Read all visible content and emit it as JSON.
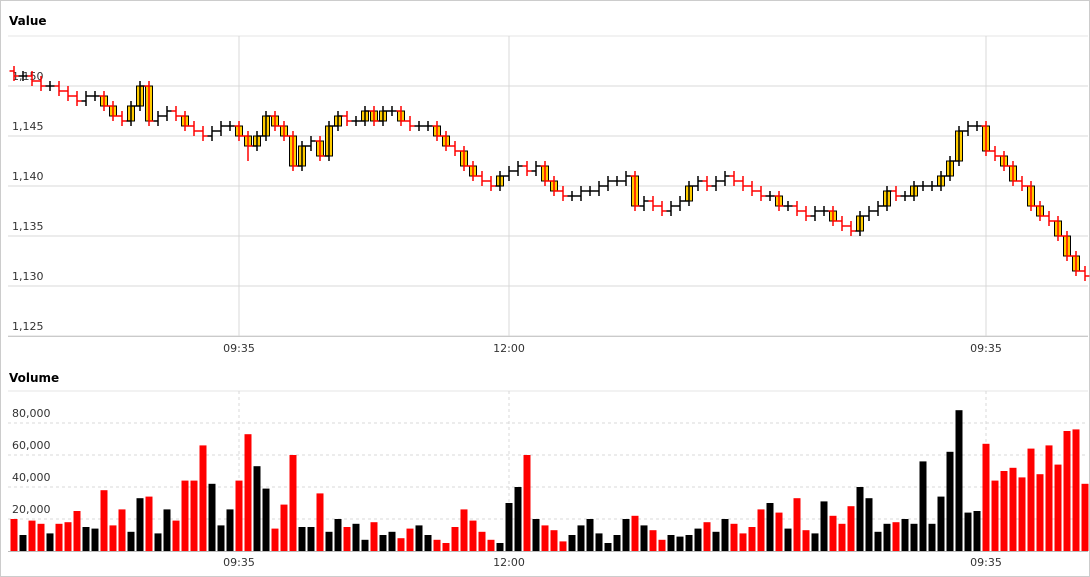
{
  "chart_data": [
    {
      "type": "candlestick",
      "title": "Value",
      "categories": [
        null,
        null,
        null,
        null,
        null,
        null,
        null,
        null,
        null,
        null,
        null,
        null,
        null,
        null,
        null,
        null,
        null,
        null,
        null,
        null,
        null,
        null,
        null,
        null,
        null,
        "09:35",
        null,
        null,
        null,
        null,
        null,
        null,
        null,
        null,
        null,
        null,
        null,
        null,
        null,
        null,
        null,
        null,
        null,
        null,
        null,
        null,
        null,
        null,
        null,
        null,
        null,
        null,
        null,
        null,
        null,
        "12:00",
        null,
        null,
        null,
        null,
        null,
        null,
        null,
        null,
        null,
        null,
        null,
        null,
        null,
        null,
        null,
        null,
        null,
        null,
        null,
        null,
        null,
        null,
        null,
        null,
        null,
        null,
        null,
        null,
        null,
        null,
        null,
        null,
        null,
        null,
        null,
        null,
        null,
        null,
        null,
        null,
        null,
        null,
        null,
        null,
        null,
        null,
        null,
        null,
        null,
        null,
        null,
        null,
        "09:35",
        null,
        null,
        null,
        null,
        null,
        null,
        null,
        null,
        null,
        null,
        null
      ],
      "open": [
        1151.5,
        1151,
        1151,
        1150.5,
        1150,
        1150,
        1149.5,
        1149,
        1148.5,
        1149,
        1149,
        1148,
        1147,
        1146.5,
        1148,
        1150,
        1146.5,
        1147,
        1147.5,
        1147,
        1146,
        1145.5,
        1145,
        1145.5,
        1146,
        1146,
        1145,
        1144,
        1145,
        1147,
        1146,
        1145,
        1142,
        1144,
        1144.5,
        1143,
        1146,
        1147,
        1146.5,
        1146.5,
        1147.5,
        1146.5,
        1147.5,
        1147.5,
        1146.5,
        1146,
        1146,
        1146,
        1145,
        1144,
        1143.5,
        1142,
        1141,
        1140.5,
        1140,
        1141,
        1141.5,
        1142,
        1141.5,
        1142,
        1140.5,
        1139.5,
        1139,
        1139,
        1139.5,
        1139.5,
        1140,
        1140.5,
        1140.5,
        1141,
        1138,
        1138.5,
        1138,
        1137.5,
        1138,
        1138.5,
        1140,
        1140.5,
        1140,
        1140.5,
        1141,
        1140.5,
        1140,
        1139.5,
        1139,
        1139,
        1138,
        1138,
        1137.5,
        1137,
        1137.5,
        1137.5,
        1136.5,
        1136,
        1135.5,
        1137,
        1137.5,
        1138,
        1139.5,
        1139,
        1139,
        1140,
        1140,
        1140,
        1141,
        1142.5,
        1145.5,
        1146,
        1146,
        1143.5,
        1143,
        1142,
        1140.5,
        1140,
        1138,
        1137,
        1136.5,
        1135,
        1133,
        1131.5
      ],
      "high": [
        1152,
        1151.5,
        1151.5,
        1151,
        1150.5,
        1150.5,
        1150,
        1149.5,
        1149.5,
        1149.5,
        1149.5,
        1148.5,
        1147.5,
        1148.5,
        1150.5,
        1150.5,
        1147.5,
        1148,
        1148,
        1147.5,
        1146.5,
        1146,
        1146,
        1146.5,
        1146.5,
        1146.5,
        1145.5,
        1145.5,
        1147.5,
        1147.5,
        1146.5,
        1145.5,
        1144.5,
        1145,
        1145,
        1146.5,
        1147.5,
        1147.5,
        1147,
        1148,
        1148,
        1148,
        1148,
        1148,
        1147,
        1146.5,
        1146.5,
        1146.5,
        1145.5,
        1144.5,
        1144,
        1142.5,
        1141.5,
        1141,
        1141.5,
        1142,
        1142.5,
        1142.5,
        1142.5,
        1142.5,
        1141,
        1140,
        1139.5,
        1140,
        1140,
        1140.5,
        1141,
        1141,
        1141.5,
        1141.5,
        1139,
        1139,
        1138.5,
        1138.5,
        1139,
        1140.5,
        1141,
        1141,
        1141,
        1141.5,
        1141.5,
        1141,
        1140.5,
        1140,
        1139.5,
        1139.5,
        1138.5,
        1138.5,
        1138,
        1138,
        1138,
        1138,
        1137,
        1136.5,
        1137.5,
        1138,
        1138.5,
        1140,
        1140,
        1139.5,
        1140.5,
        1140.5,
        1140.5,
        1141.5,
        1143,
        1146,
        1146.5,
        1146.5,
        1146.5,
        1144,
        1143.5,
        1142.5,
        1141,
        1140.5,
        1138.5,
        1137.5,
        1137,
        1135.5,
        1133.5,
        1132
      ],
      "low": [
        1150.5,
        1150.5,
        1150,
        1149.5,
        1149.5,
        1149,
        1148.5,
        1148,
        1148,
        1148.5,
        1147.5,
        1146.5,
        1146,
        1146,
        1147.5,
        1146,
        1146,
        1146.5,
        1146.5,
        1145.5,
        1145,
        1144.5,
        1144.5,
        1145,
        1145.5,
        1144.5,
        1142.5,
        1143.5,
        1144.5,
        1145.5,
        1144.5,
        1141.5,
        1141.5,
        1143.5,
        1142.5,
        1142.5,
        1145.5,
        1146,
        1146,
        1146,
        1146,
        1146,
        1147,
        1146,
        1145.5,
        1145.5,
        1145.5,
        1144.5,
        1143.5,
        1143,
        1141.5,
        1140.5,
        1140,
        1139.5,
        1139.5,
        1140.5,
        1141,
        1141,
        1141,
        1140,
        1139,
        1138.5,
        1138.5,
        1138.5,
        1139,
        1139,
        1139.5,
        1140,
        1140,
        1137.5,
        1137.5,
        1137.5,
        1137,
        1137,
        1137.5,
        1138,
        1139.5,
        1139.5,
        1139.5,
        1140,
        1140,
        1139.5,
        1139,
        1138.5,
        1138.5,
        1137.5,
        1137.5,
        1137,
        1136.5,
        1136.5,
        1137,
        1136,
        1135.5,
        1135,
        1135,
        1136.5,
        1137,
        1137.5,
        1138.5,
        1138.5,
        1138.5,
        1139.5,
        1139.5,
        1139.5,
        1140.5,
        1142,
        1145,
        1145.5,
        1143,
        1142.5,
        1141.5,
        1140,
        1139.5,
        1137.5,
        1136.5,
        1136,
        1134.5,
        1132.5,
        1131,
        1130.5
      ],
      "close": [
        1151,
        1151,
        1150.5,
        1150,
        1150,
        1149.5,
        1149,
        1148.5,
        1149,
        1149,
        1148,
        1147,
        1146.5,
        1148,
        1150,
        1146.5,
        1147,
        1147.5,
        1147,
        1146,
        1145.5,
        1145,
        1145.5,
        1146,
        1146,
        1145,
        1144,
        1145,
        1147,
        1146,
        1145,
        1142,
        1144,
        1144.5,
        1143,
        1146,
        1147,
        1146.5,
        1146.5,
        1147.5,
        1146.5,
        1147.5,
        1147.5,
        1146.5,
        1146,
        1146,
        1146,
        1145,
        1144,
        1143.5,
        1142,
        1141,
        1140.5,
        1140,
        1141,
        1141.5,
        1142,
        1141.5,
        1142,
        1140.5,
        1139.5,
        1139,
        1139,
        1139.5,
        1139.5,
        1140,
        1140.5,
        1140.5,
        1141,
        1138,
        1138.5,
        1138,
        1137.5,
        1138,
        1138.5,
        1140,
        1140.5,
        1140,
        1140.5,
        1141,
        1140.5,
        1140,
        1139.5,
        1139,
        1139,
        1138,
        1138,
        1137.5,
        1137,
        1137.5,
        1137.5,
        1136.5,
        1136,
        1135.5,
        1137,
        1137.5,
        1138,
        1139.5,
        1139,
        1139,
        1140,
        1140,
        1140,
        1141,
        1142.5,
        1145.5,
        1146,
        1146,
        1143.5,
        1143,
        1142,
        1140.5,
        1140,
        1138,
        1137,
        1136.5,
        1135,
        1133,
        1131.5,
        1131
      ],
      "up_color": "#000000",
      "down_color": "#ff0000",
      "body_color": "#ffcc00",
      "ylim": [
        1125,
        1155
      ],
      "yticks": [
        {
          "value": 1125,
          "label": "1,125"
        },
        {
          "value": 1130,
          "label": "1,130"
        },
        {
          "value": 1135,
          "label": "1,135"
        },
        {
          "value": 1140,
          "label": "1,140"
        },
        {
          "value": 1145,
          "label": "1,145"
        },
        {
          "value": 1150,
          "label": "1,150"
        }
      ],
      "grid": true
    },
    {
      "type": "bar",
      "title": "Volume",
      "categories": [
        null,
        null,
        null,
        null,
        null,
        null,
        null,
        null,
        null,
        null,
        null,
        null,
        null,
        null,
        null,
        null,
        null,
        null,
        null,
        null,
        null,
        null,
        null,
        null,
        null,
        "09:35",
        null,
        null,
        null,
        null,
        null,
        null,
        null,
        null,
        null,
        null,
        null,
        null,
        null,
        null,
        null,
        null,
        null,
        null,
        null,
        null,
        null,
        null,
        null,
        null,
        null,
        null,
        null,
        null,
        null,
        "12:00",
        null,
        null,
        null,
        null,
        null,
        null,
        null,
        null,
        null,
        null,
        null,
        null,
        null,
        null,
        null,
        null,
        null,
        null,
        null,
        null,
        null,
        null,
        null,
        null,
        null,
        null,
        null,
        null,
        null,
        null,
        null,
        null,
        null,
        null,
        null,
        null,
        null,
        null,
        null,
        null,
        null,
        null,
        null,
        null,
        null,
        null,
        null,
        null,
        null,
        null,
        null,
        null,
        "09:35",
        null,
        null,
        null,
        null,
        null,
        null,
        null,
        null,
        null,
        null,
        null
      ],
      "values": [
        20000,
        10000,
        19000,
        17000,
        11000,
        17000,
        18000,
        25000,
        15000,
        14000,
        38000,
        16000,
        26000,
        12000,
        33000,
        34000,
        11000,
        26000,
        19000,
        44000,
        44000,
        66000,
        42000,
        16000,
        26000,
        44000,
        73000,
        53000,
        39000,
        14000,
        29000,
        60000,
        15000,
        15000,
        36000,
        12000,
        20000,
        15000,
        17000,
        7000,
        18000,
        10000,
        12000,
        8000,
        14000,
        16000,
        10000,
        7000,
        5000,
        15000,
        26000,
        19000,
        12000,
        7000,
        5000,
        30000,
        40000,
        60000,
        20000,
        16000,
        13000,
        6000,
        10000,
        16000,
        20000,
        11000,
        5000,
        10000,
        20000,
        22000,
        16000,
        13000,
        7000,
        10000,
        9000,
        10000,
        14000,
        18000,
        12000,
        20000,
        17000,
        11000,
        15000,
        26000,
        30000,
        24000,
        14000,
        33000,
        13000,
        11000,
        31000,
        22000,
        17000,
        28000,
        40000,
        33000,
        12000,
        17000,
        18000,
        20000,
        17000,
        56000,
        17000,
        34000,
        62000,
        88000,
        24000,
        25000,
        67000,
        44000,
        50000,
        52000,
        46000,
        64000,
        48000,
        66000,
        54000,
        75000,
        76000,
        42000
      ],
      "up_color": "#000000",
      "down_color": "#ff0000",
      "ylim": [
        0,
        100000
      ],
      "yticks": [
        {
          "value": 20000,
          "label": "20,000"
        },
        {
          "value": 40000,
          "label": "40,000"
        },
        {
          "value": 60000,
          "label": "60,000"
        },
        {
          "value": 80000,
          "label": "80,000"
        }
      ],
      "grid": true
    }
  ]
}
